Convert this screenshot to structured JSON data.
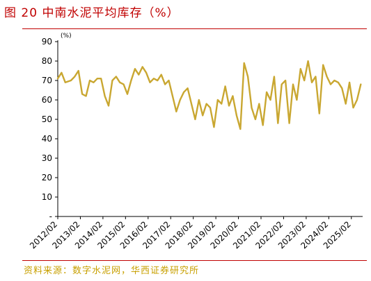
{
  "figure": {
    "title": "图 20 中南水泥平均库存（%）",
    "source": "资料来源：数字水泥网，华西证券研究所"
  },
  "colors": {
    "title": "#c00000",
    "rule": "#c00000",
    "source": "#c8a000",
    "series": "#c9a731"
  },
  "chart_data": {
    "type": "line",
    "unit": "(%)",
    "ylim": [
      0,
      90
    ],
    "yticks": [
      90,
      80,
      70,
      60,
      50,
      40,
      30,
      20,
      10
    ],
    "y_zero_label": "-",
    "xlim": [
      "2012/02",
      "2025/08"
    ],
    "xticks": [
      "2012/02",
      "2013/02",
      "2014/02",
      "2015/02",
      "2016/02",
      "2017/02",
      "2018/02",
      "2019/02",
      "2020/02",
      "2021/02",
      "2022/02",
      "2023/02",
      "2024/02",
      "2025/02"
    ],
    "grid": false,
    "legend": "none",
    "series": [
      {
        "points": [
          [
            "2012/02",
            71
          ],
          [
            "2012/04",
            74
          ],
          [
            "2012/06",
            69
          ],
          [
            "2012/09",
            70
          ],
          [
            "2012/11",
            72
          ],
          [
            "2013/01",
            75
          ],
          [
            "2013/03",
            63
          ],
          [
            "2013/05",
            62
          ],
          [
            "2013/07",
            70
          ],
          [
            "2013/09",
            69
          ],
          [
            "2013/11",
            71
          ],
          [
            "2014/01",
            71
          ],
          [
            "2014/03",
            62
          ],
          [
            "2014/05",
            57
          ],
          [
            "2014/07",
            70
          ],
          [
            "2014/09",
            72
          ],
          [
            "2014/11",
            69
          ],
          [
            "2015/01",
            68
          ],
          [
            "2015/03",
            63
          ],
          [
            "2015/05",
            70
          ],
          [
            "2015/07",
            76
          ],
          [
            "2015/09",
            73
          ],
          [
            "2015/11",
            77
          ],
          [
            "2016/01",
            74
          ],
          [
            "2016/03",
            69
          ],
          [
            "2016/05",
            71
          ],
          [
            "2016/07",
            70
          ],
          [
            "2016/09",
            73
          ],
          [
            "2016/11",
            68
          ],
          [
            "2017/01",
            70
          ],
          [
            "2017/03",
            62
          ],
          [
            "2017/05",
            54
          ],
          [
            "2017/07",
            60
          ],
          [
            "2017/09",
            64
          ],
          [
            "2017/11",
            66
          ],
          [
            "2018/01",
            58
          ],
          [
            "2018/03",
            50
          ],
          [
            "2018/05",
            60
          ],
          [
            "2018/07",
            52
          ],
          [
            "2018/09",
            58
          ],
          [
            "2018/11",
            56
          ],
          [
            "2019/01",
            46
          ],
          [
            "2019/03",
            60
          ],
          [
            "2019/05",
            58
          ],
          [
            "2019/07",
            67
          ],
          [
            "2019/09",
            57
          ],
          [
            "2019/11",
            62
          ],
          [
            "2020/01",
            52
          ],
          [
            "2020/03",
            45
          ],
          [
            "2020/05",
            79
          ],
          [
            "2020/07",
            72
          ],
          [
            "2020/09",
            56
          ],
          [
            "2020/11",
            50
          ],
          [
            "2021/01",
            58
          ],
          [
            "2021/03",
            47
          ],
          [
            "2021/05",
            64
          ],
          [
            "2021/07",
            60
          ],
          [
            "2021/09",
            72
          ],
          [
            "2021/11",
            48
          ],
          [
            "2022/01",
            68
          ],
          [
            "2022/03",
            70
          ],
          [
            "2022/05",
            48
          ],
          [
            "2022/07",
            68
          ],
          [
            "2022/09",
            60
          ],
          [
            "2022/11",
            76
          ],
          [
            "2023/01",
            70
          ],
          [
            "2023/03",
            80
          ],
          [
            "2023/05",
            69
          ],
          [
            "2023/07",
            72
          ],
          [
            "2023/09",
            53
          ],
          [
            "2023/11",
            78
          ],
          [
            "2024/01",
            72
          ],
          [
            "2024/03",
            68
          ],
          [
            "2024/05",
            70
          ],
          [
            "2024/07",
            69
          ],
          [
            "2024/09",
            66
          ],
          [
            "2024/11",
            58
          ],
          [
            "2025/01",
            69
          ],
          [
            "2025/03",
            56
          ],
          [
            "2025/05",
            60
          ],
          [
            "2025/07",
            68
          ]
        ]
      }
    ]
  }
}
